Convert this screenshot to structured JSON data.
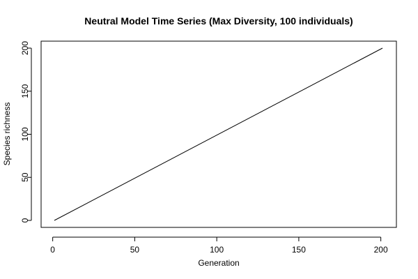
{
  "chart_data": {
    "type": "line",
    "title": "Neutral Model Time Series (Max Diversity, 100 individuals)",
    "xlabel": "Generation",
    "ylabel": "Species richness",
    "xlim": [
      1,
      201
    ],
    "ylim": [
      0,
      200
    ],
    "xticks": [
      0,
      50,
      100,
      150,
      200
    ],
    "yticks": [
      0,
      50,
      100,
      150,
      200
    ],
    "grid": false,
    "series": [
      {
        "color": "#000000",
        "x": [
          1,
          201
        ],
        "y": [
          0,
          200
        ]
      }
    ]
  }
}
